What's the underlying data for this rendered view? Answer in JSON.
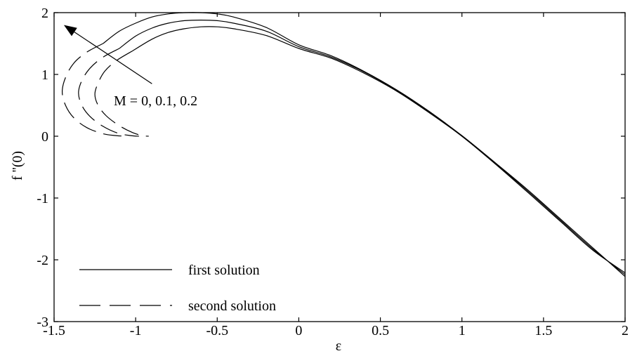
{
  "chart_data": {
    "type": "line",
    "title": "",
    "xlabel": "ε",
    "ylabel": "f ''(0)",
    "xlim": [
      -1.5,
      2
    ],
    "ylim": [
      -3,
      2
    ],
    "x_ticks": [
      -1.5,
      -1,
      -0.5,
      0,
      0.5,
      1,
      1.5,
      2
    ],
    "x_tick_labels": [
      "-1.5",
      "-1",
      "-0.5",
      "0",
      "0.5",
      "1",
      "1.5",
      "2"
    ],
    "y_ticks": [
      -3,
      -2,
      -1,
      0,
      1,
      2
    ],
    "y_tick_labels": [
      "-3",
      "-2",
      "-1",
      "0",
      "1",
      "2"
    ],
    "grid": false,
    "legend_position": "bottom-left",
    "legend": [
      {
        "label": "first solution",
        "style": "solid"
      },
      {
        "label": "second solution",
        "style": "dashed"
      }
    ],
    "annotation": {
      "text": "M = 0, 0.1, 0.2",
      "arrow_from": [
        -0.9,
        0.85
      ],
      "arrow_to": [
        -1.44,
        1.8
      ]
    },
    "series": [
      {
        "style": "solid",
        "x": [
          -1.2,
          -1.1,
          -1.0,
          -0.9,
          -0.8,
          -0.7,
          -0.6,
          -0.5,
          -0.4,
          -0.2,
          0.0,
          0.2,
          0.4,
          0.6,
          0.8,
          1.0,
          1.2,
          1.4,
          1.6,
          1.8,
          2.0
        ],
        "y": [
          1.5,
          1.7,
          1.83,
          1.93,
          1.98,
          2.0,
          2.0,
          1.98,
          1.93,
          1.76,
          1.48,
          1.3,
          1.05,
          0.75,
          0.4,
          0.01,
          -0.42,
          -0.86,
          -1.33,
          -1.8,
          -2.27
        ]
      },
      {
        "style": "solid",
        "x": [
          -1.1,
          -1.0,
          -0.9,
          -0.8,
          -0.7,
          -0.6,
          -0.5,
          -0.4,
          -0.2,
          0.0,
          0.2,
          0.4,
          0.6,
          0.8,
          1.0,
          1.2,
          1.4,
          1.6,
          1.8,
          2.0
        ],
        "y": [
          1.42,
          1.62,
          1.75,
          1.83,
          1.87,
          1.88,
          1.87,
          1.83,
          1.7,
          1.45,
          1.28,
          1.04,
          0.74,
          0.39,
          0.0,
          -0.43,
          -0.88,
          -1.35,
          -1.82,
          -2.24
        ]
      },
      {
        "style": "solid",
        "x": [
          -1.02,
          -0.9,
          -0.8,
          -0.7,
          -0.6,
          -0.5,
          -0.4,
          -0.2,
          0.0,
          0.2,
          0.4,
          0.6,
          0.8,
          1.0,
          1.2,
          1.4,
          1.6,
          1.8,
          2.0
        ],
        "y": [
          1.38,
          1.57,
          1.68,
          1.74,
          1.77,
          1.77,
          1.74,
          1.63,
          1.42,
          1.26,
          1.02,
          0.73,
          0.38,
          0.0,
          -0.44,
          -0.9,
          -1.37,
          -1.84,
          -2.21
        ]
      },
      {
        "style": "dashed",
        "x": [
          -1.2,
          -1.3,
          -1.38,
          -1.43,
          -1.45,
          -1.43,
          -1.38,
          -1.3,
          -1.2,
          -1.12,
          -1.06
        ],
        "y": [
          1.5,
          1.36,
          1.18,
          0.95,
          0.72,
          0.5,
          0.3,
          0.14,
          0.04,
          0.01,
          0.0
        ]
      },
      {
        "style": "dashed",
        "x": [
          -1.1,
          -1.2,
          -1.28,
          -1.33,
          -1.35,
          -1.33,
          -1.28,
          -1.2,
          -1.11,
          -1.03,
          -0.98
        ],
        "y": [
          1.42,
          1.28,
          1.1,
          0.9,
          0.7,
          0.5,
          0.32,
          0.16,
          0.05,
          0.01,
          0.0
        ]
      },
      {
        "style": "dashed",
        "x": [
          -1.02,
          -1.12,
          -1.19,
          -1.23,
          -1.25,
          -1.23,
          -1.18,
          -1.1,
          -1.02,
          -0.96,
          -0.92
        ],
        "y": [
          1.38,
          1.22,
          1.05,
          0.86,
          0.68,
          0.5,
          0.33,
          0.17,
          0.06,
          0.01,
          0.0
        ]
      }
    ]
  }
}
